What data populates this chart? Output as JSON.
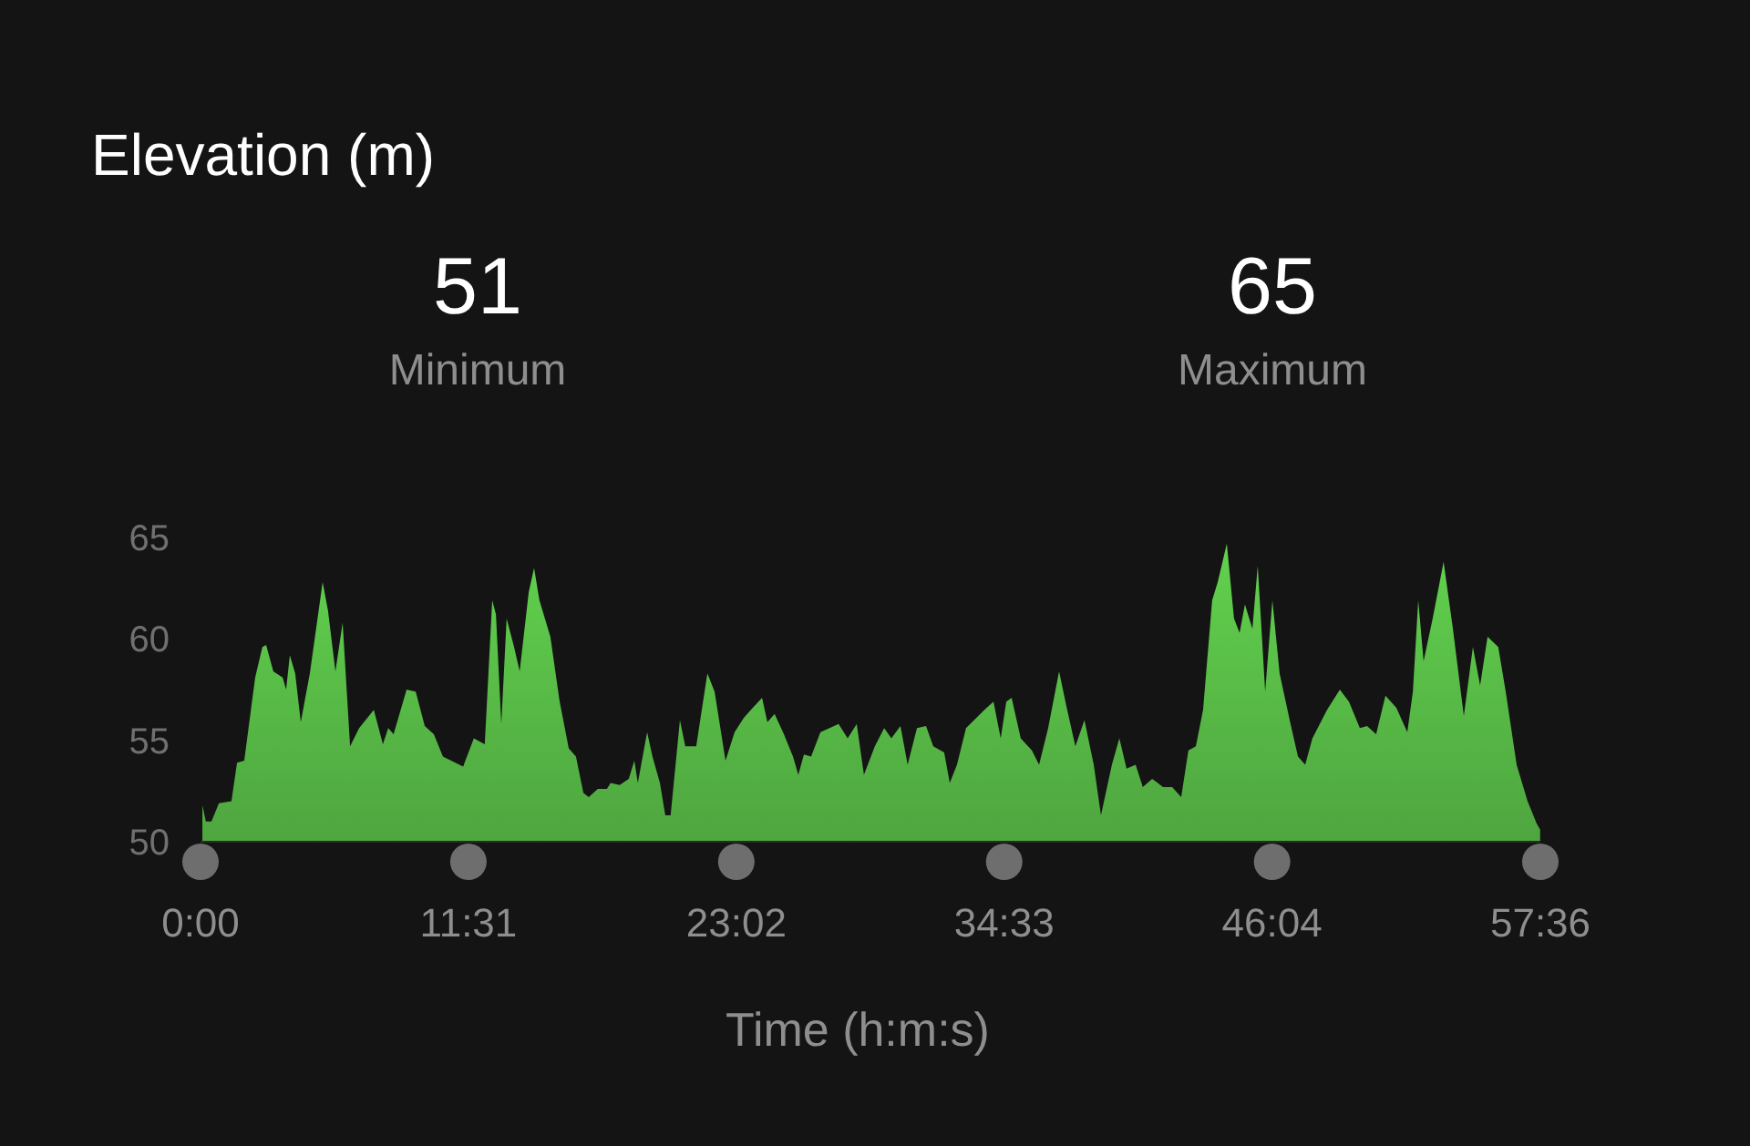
{
  "chart_data": {
    "type": "area",
    "title": "Elevation (m)",
    "xlabel": "Time (h:m:s)",
    "annotations": [
      "51",
      "Minimum",
      "65",
      "Maximum"
    ],
    "xlim": [
      0,
      57.6
    ],
    "ylim": [
      50,
      65
    ],
    "xticks": [
      {
        "value": 0,
        "label": "0:00"
      },
      {
        "value": 11.5167,
        "label": "11:31"
      },
      {
        "value": 23.0333,
        "label": "23:02"
      },
      {
        "value": 34.55,
        "label": "34:33"
      },
      {
        "value": 46.0667,
        "label": "46:04"
      },
      {
        "value": 57.6,
        "label": "57:36"
      }
    ],
    "yticks": [
      50,
      55,
      60,
      65
    ],
    "grid": false,
    "series": [
      {
        "color": "#62d24e",
        "x": [
          0.08,
          0.23,
          0.47,
          0.79,
          1.33,
          1.57,
          1.88,
          2.35,
          2.66,
          2.82,
          3.13,
          3.53,
          3.68,
          3.84,
          4.07,
          4.31,
          4.7,
          5.25,
          5.48,
          5.8,
          6.11,
          6.43,
          6.82,
          7.45,
          7.84,
          8.07,
          8.3,
          8.86,
          9.25,
          9.64,
          10.03,
          10.42,
          11.29,
          11.75,
          12.22,
          12.54,
          12.7,
          12.93,
          13.16,
          13.48,
          13.72,
          14.11,
          14.34,
          14.57,
          15.04,
          15.44,
          15.83,
          16.14,
          16.46,
          16.69,
          17.08,
          17.47,
          17.63,
          18.02,
          18.41,
          18.65,
          18.8,
          19.2,
          19.43,
          19.75,
          19.98,
          20.21,
          20.61,
          20.84,
          21.31,
          21.79,
          22.1,
          22.57,
          22.96,
          23.35,
          23.66,
          24.14,
          24.37,
          24.68,
          25.08,
          25.47,
          25.7,
          25.94,
          26.25,
          26.65,
          27.04,
          27.43,
          27.82,
          28.21,
          28.52,
          28.99,
          29.39,
          29.7,
          30.09,
          30.4,
          30.8,
          31.19,
          31.5,
          31.97,
          32.21,
          32.52,
          32.91,
          33.7,
          34.09,
          34.4,
          34.64,
          34.87,
          35.26,
          35.74,
          36.05,
          36.44,
          36.91,
          37.22,
          37.61,
          38.0,
          38.4,
          38.71,
          39.18,
          39.5,
          39.81,
          40.2,
          40.51,
          40.91,
          41.38,
          41.77,
          42.16,
          42.47,
          42.79,
          43.1,
          43.49,
          43.73,
          44.12,
          44.43,
          44.67,
          44.9,
          45.22,
          45.45,
          45.77,
          46.08,
          46.39,
          46.86,
          47.18,
          47.49,
          47.8,
          48.43,
          48.98,
          49.37,
          49.84,
          50.15,
          50.54,
          50.94,
          51.41,
          51.88,
          52.12,
          52.35,
          52.58,
          52.97,
          53.44,
          53.84,
          54.31,
          54.7,
          55.01,
          55.33,
          55.79,
          56.11,
          56.58,
          57.05,
          57.44,
          57.59
        ],
        "values": [
          51.8,
          51.0,
          51.0,
          51.9,
          52.0,
          53.9,
          54.0,
          58.1,
          59.6,
          59.7,
          58.4,
          58.1,
          57.5,
          59.2,
          58.3,
          55.9,
          58.3,
          62.8,
          61.4,
          58.4,
          60.8,
          54.7,
          55.6,
          56.5,
          54.8,
          55.6,
          55.3,
          57.5,
          57.4,
          55.7,
          55.3,
          54.2,
          53.7,
          55.1,
          54.8,
          61.9,
          61.2,
          55.8,
          61.0,
          59.6,
          58.4,
          62.3,
          63.5,
          61.9,
          60.1,
          56.9,
          54.6,
          54.2,
          52.4,
          52.2,
          52.6,
          52.6,
          52.9,
          52.8,
          53.1,
          54.0,
          52.9,
          55.4,
          54.2,
          52.9,
          51.3,
          51.3,
          56.0,
          54.7,
          54.7,
          58.3,
          57.4,
          54.0,
          55.4,
          56.1,
          56.5,
          57.1,
          55.9,
          56.3,
          55.3,
          54.2,
          53.3,
          54.3,
          54.2,
          55.4,
          55.6,
          55.8,
          55.1,
          55.8,
          53.3,
          54.7,
          55.6,
          55.1,
          55.7,
          53.8,
          55.6,
          55.7,
          54.7,
          54.4,
          52.9,
          53.8,
          55.6,
          56.5,
          56.9,
          55.1,
          56.9,
          57.1,
          55.1,
          54.5,
          53.8,
          55.6,
          58.4,
          56.7,
          54.7,
          56.0,
          53.8,
          51.3,
          53.8,
          55.1,
          53.6,
          53.8,
          52.7,
          53.1,
          52.7,
          52.7,
          52.2,
          54.5,
          54.7,
          56.5,
          61.9,
          62.8,
          64.7,
          61.0,
          60.3,
          61.7,
          60.5,
          63.6,
          57.4,
          61.9,
          58.3,
          55.8,
          54.2,
          53.8,
          55.1,
          56.5,
          57.5,
          56.9,
          55.6,
          55.7,
          55.3,
          57.2,
          56.6,
          55.4,
          57.4,
          61.9,
          58.9,
          61.0,
          63.8,
          60.5,
          56.2,
          59.6,
          57.7,
          60.1,
          59.6,
          57.4,
          53.8,
          52.0,
          50.9,
          50.6
        ]
      }
    ]
  }
}
